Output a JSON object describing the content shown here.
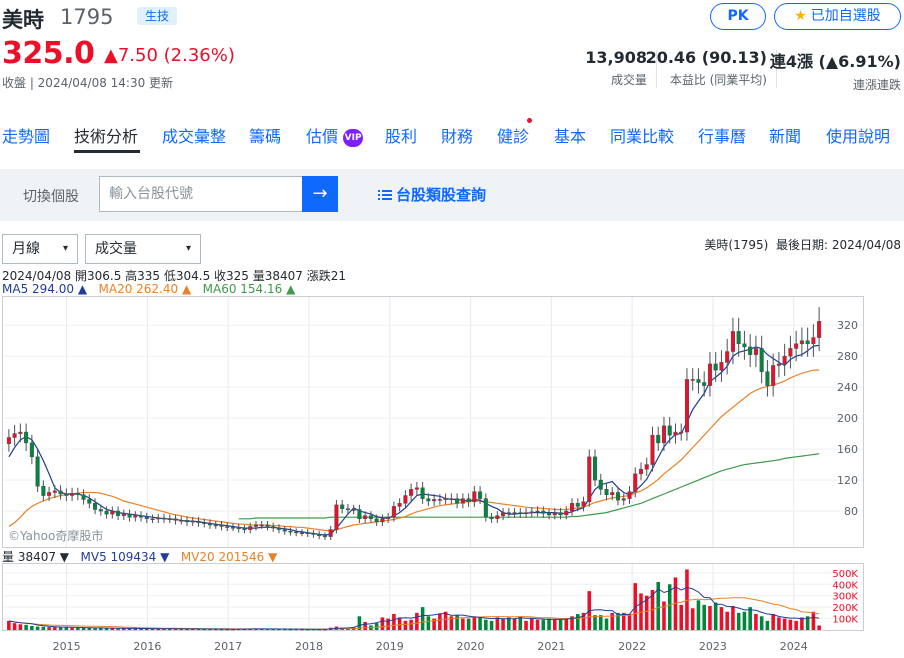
{
  "stock": {
    "name": "美時",
    "code": "1795",
    "tag": "生技",
    "price": "325.0",
    "change": "▲7.50 (2.36%)",
    "status": "收盤 | 2024/04/08 14:30 更新"
  },
  "actions": {
    "pk": "PK",
    "fav_icon": "star-icon",
    "fav": "已加自選股"
  },
  "stats": [
    {
      "value": "13,908",
      "label": "成交量"
    },
    {
      "value": "20.46 (90.13)",
      "label": "本益比 (同業平均)"
    },
    {
      "value": "連4漲 (▲6.91%)",
      "label": "連漲連跌"
    }
  ],
  "tabs": [
    "走勢圖",
    "技術分析",
    "成交彙整",
    "籌碼",
    "估價",
    "股利",
    "財務",
    "健診",
    "基本",
    "同業比較",
    "行事曆",
    "新聞",
    "使用說明"
  ],
  "vip_badge": "VIP",
  "search": {
    "label": "切換個股",
    "placeholder": "輸入台股代號",
    "go": "→",
    "query_icon": "list-icon",
    "query": "台股類股查詢"
  },
  "controls": {
    "period": "月線",
    "indicator": "成交量",
    "caret": "▾"
  },
  "chart_meta": {
    "symbol": "美時(1795)",
    "last_date": "最後日期: 2024/04/08",
    "ohlc": "2024/04/08 開306.5 高335 低304.5 收325 量38407 漲跌21",
    "ma5": "MA5 294.00 ▲",
    "ma20": "MA20 262.40 ▲",
    "ma60": "MA60 154.16 ▲",
    "vol": "量 38407 ▼",
    "mv5": "MV5 109434 ▼",
    "mv20": "MV20 201546 ▼",
    "watermark": "©Yahoo奇摩股市"
  },
  "colors": {
    "up": "#eb0f29",
    "down": "#00873c",
    "ma5": "#1f3d99",
    "ma20": "#e8822a",
    "ma60": "#3f9a4b",
    "accent": "#0f69ff"
  },
  "chart_data": {
    "type": "candlestick",
    "price_axis": {
      "ticks": [
        80,
        120,
        160,
        200,
        240,
        280,
        320
      ],
      "range": [
        40,
        350
      ]
    },
    "volume_axis": {
      "ticks": [
        "100K",
        "200K",
        "300K",
        "400K",
        "500K"
      ],
      "range": [
        0,
        560000
      ]
    },
    "x_labels": [
      "2015",
      "2016",
      "2017",
      "2018",
      "2019",
      "2020",
      "2021",
      "2022",
      "2023",
      "2024"
    ],
    "x_start": 2014.25,
    "x_end": 2024.35,
    "closes": [
      175,
      180,
      182,
      168,
      150,
      112,
      100,
      104,
      106,
      102,
      100,
      103,
      101,
      95,
      90,
      82,
      80,
      76,
      80,
      74,
      76,
      72,
      74,
      72,
      70,
      70,
      71,
      70,
      70,
      68,
      68,
      66,
      67,
      65,
      64,
      62,
      62,
      60,
      59,
      59,
      57,
      56,
      60,
      62,
      62,
      60,
      58,
      56,
      54,
      53,
      52,
      52,
      51,
      50,
      48,
      47,
      56,
      88,
      83,
      82,
      82,
      70,
      74,
      70,
      66,
      70,
      72,
      86,
      90,
      100,
      108,
      110,
      96,
      93,
      95,
      95,
      96,
      96,
      90,
      96,
      92,
      105,
      96,
      72,
      70,
      74,
      78,
      77,
      78,
      77,
      78,
      79,
      80,
      77,
      75,
      78,
      75,
      80,
      90,
      86,
      92,
      150,
      120,
      108,
      101,
      104,
      94,
      96,
      105,
      128,
      134,
      140,
      178,
      168,
      190,
      178,
      182,
      182,
      250,
      250,
      246,
      242,
      270,
      262,
      272,
      286,
      312,
      296,
      292,
      282,
      290,
      260,
      242,
      268,
      270,
      280,
      290,
      296,
      300,
      296,
      304,
      325
    ],
    "volume": [
      80000,
      60000,
      50000,
      45000,
      35000,
      30000,
      28000,
      25000,
      25000,
      22000,
      25000,
      20000,
      20000,
      18000,
      18000,
      15000,
      20000,
      15000,
      15000,
      12000,
      15000,
      15000,
      12000,
      10000,
      12000,
      14000,
      10000,
      10000,
      9000,
      11000,
      10000,
      8000,
      9000,
      9000,
      8000,
      8000,
      8000,
      7000,
      7000,
      7000,
      9000,
      10000,
      12000,
      10000,
      9000,
      9000,
      8000,
      8000,
      8000,
      7000,
      8000,
      7000,
      6000,
      7000,
      6000,
      5000,
      20000,
      30000,
      20000,
      15000,
      25000,
      120000,
      70000,
      40000,
      60000,
      110000,
      100000,
      140000,
      110000,
      80000,
      90000,
      150000,
      200000,
      120000,
      100000,
      140000,
      160000,
      120000,
      130000,
      100000,
      100000,
      120000,
      110000,
      90000,
      80000,
      110000,
      100000,
      110000,
      100000,
      120000,
      80000,
      100000,
      90000,
      90000,
      100000,
      90000,
      95000,
      100000,
      120000,
      140000,
      150000,
      340000,
      130000,
      130000,
      100000,
      150000,
      150000,
      150000,
      140000,
      410000,
      320000,
      300000,
      350000,
      420000,
      250000,
      400000,
      460000,
      220000,
      530000,
      190000,
      260000,
      220000,
      210000,
      240000,
      200000,
      160000,
      210000,
      150000,
      160000,
      200000,
      140000,
      120000,
      80000,
      140000,
      110000,
      100000,
      90000,
      80000,
      110000,
      120000,
      160000,
      40000
    ],
    "ma5": [
      150,
      162,
      172,
      176,
      172,
      160,
      145,
      128,
      110,
      104,
      102,
      102,
      102,
      100,
      97,
      92,
      87,
      82,
      80,
      78,
      77,
      76,
      75,
      74,
      73,
      72,
      71,
      70,
      70,
      69,
      68,
      67,
      67,
      66,
      65,
      64,
      63,
      62,
      61,
      60,
      59,
      58,
      58,
      58,
      59,
      59,
      59,
      58,
      57,
      56,
      54,
      53,
      52,
      51,
      50,
      49,
      50,
      58,
      67,
      76,
      84,
      80,
      78,
      76,
      73,
      71,
      71,
      74,
      78,
      84,
      92,
      100,
      102,
      101,
      100,
      99,
      96,
      95,
      95,
      94,
      93,
      95,
      94,
      90,
      86,
      83,
      78,
      76,
      76,
      77,
      77,
      78,
      78,
      78,
      78,
      78,
      77,
      77,
      79,
      82,
      84,
      96,
      108,
      114,
      116,
      118,
      110,
      104,
      101,
      106,
      113,
      121,
      135,
      149,
      163,
      172,
      179,
      180,
      195,
      211,
      222,
      232,
      247,
      253,
      259,
      267,
      280,
      285,
      287,
      289,
      292,
      290,
      282,
      277,
      272,
      268,
      276,
      280,
      282,
      287,
      293,
      294
    ],
    "ma20": [
      60,
      65,
      72,
      80,
      86,
      90,
      93,
      96,
      98,
      100,
      101,
      102,
      103,
      104,
      104,
      104,
      103,
      101,
      99,
      96,
      93,
      91,
      89,
      87,
      85,
      83,
      81,
      79,
      77,
      75,
      74,
      72,
      71,
      70,
      69,
      68,
      67,
      66,
      65,
      64,
      63,
      63,
      62,
      62,
      62,
      62,
      61,
      61,
      60,
      60,
      59,
      59,
      58,
      57,
      56,
      55,
      55,
      56,
      58,
      60,
      62,
      63,
      64,
      65,
      66,
      67,
      68,
      69,
      71,
      73,
      76,
      79,
      81,
      83,
      85,
      87,
      88,
      89,
      90,
      91,
      92,
      93,
      93,
      92,
      91,
      90,
      89,
      88,
      87,
      86,
      85,
      84,
      84,
      83,
      83,
      82,
      82,
      82,
      83,
      84,
      85,
      88,
      91,
      93,
      95,
      97,
      98,
      99,
      100,
      103,
      106,
      110,
      115,
      121,
      128,
      134,
      140,
      146,
      154,
      162,
      170,
      178,
      186,
      194,
      202,
      208,
      214,
      220,
      226,
      232,
      236,
      239,
      241,
      243,
      245,
      248,
      252,
      255,
      258,
      260,
      262,
      262
    ],
    "ma60": [
      null,
      null,
      null,
      null,
      null,
      null,
      null,
      null,
      null,
      null,
      null,
      null,
      null,
      null,
      null,
      null,
      null,
      null,
      null,
      null,
      null,
      null,
      null,
      null,
      null,
      null,
      null,
      null,
      null,
      null,
      null,
      null,
      null,
      null,
      null,
      null,
      null,
      null,
      null,
      null,
      70,
      70,
      70,
      71,
      71,
      71,
      71,
      71,
      71,
      71,
      71,
      71,
      71,
      71,
      71,
      71,
      72,
      72,
      72,
      72,
      72,
      72,
      72,
      72,
      72,
      72,
      72,
      72,
      72,
      72,
      72,
      72,
      72,
      72,
      72,
      72,
      72,
      72,
      72,
      72,
      72,
      72,
      72,
      72,
      72,
      72,
      72,
      72,
      72,
      72,
      72,
      72,
      72,
      72,
      72,
      72,
      72,
      72,
      73,
      73,
      74,
      75,
      76,
      77,
      78,
      80,
      82,
      84,
      86,
      88,
      90,
      93,
      96,
      99,
      102,
      105,
      108,
      111,
      114,
      117,
      120,
      123,
      126,
      129,
      132,
      134,
      136,
      138,
      140,
      141,
      142,
      143,
      144,
      145,
      146,
      148,
      149,
      150,
      151,
      152,
      153,
      154
    ]
  }
}
